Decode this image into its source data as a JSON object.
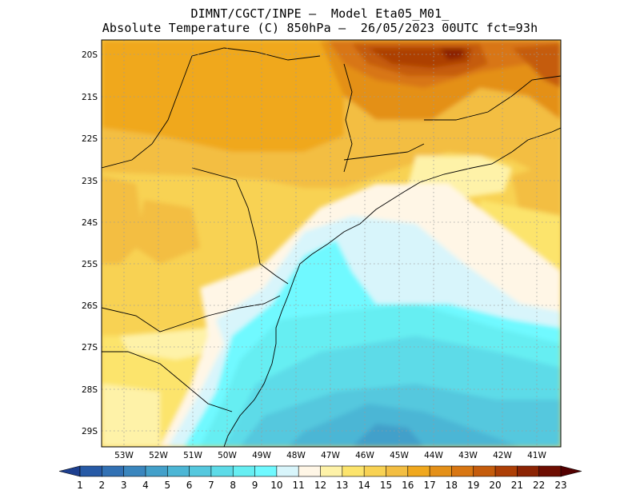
{
  "title": {
    "line1": "DIMNT/CGCT/INPE –  Model Eta05_M01_",
    "line2": "Absolute Temperature (C) 850hPa –  26/05/2023 00UTC fct=93h"
  },
  "axes": {
    "lat_labels": [
      "20S",
      "21S",
      "22S",
      "23S",
      "24S",
      "25S",
      "26S",
      "27S",
      "28S",
      "29S"
    ],
    "lon_labels": [
      "53W",
      "52W",
      "51W",
      "50W",
      "49W",
      "48W",
      "47W",
      "46W",
      "45W",
      "44W",
      "43W",
      "42W",
      "41W"
    ]
  },
  "colorbar": {
    "labels": [
      "1",
      "2",
      "3",
      "4",
      "5",
      "6",
      "7",
      "8",
      "9",
      "10",
      "11",
      "12",
      "13",
      "14",
      "15",
      "16",
      "17",
      "18",
      "19",
      "20",
      "21",
      "22",
      "23"
    ],
    "colors": [
      "#1d3f8f",
      "#275aa6",
      "#3271b4",
      "#3a86be",
      "#43a0ca",
      "#4cb6d5",
      "#55c8de",
      "#5ddbe8",
      "#66eef2",
      "#6ff9ff",
      "#d8f5fb",
      "#fff6e6",
      "#fef2a8",
      "#fce46c",
      "#f8d253",
      "#f3be42",
      "#f0a81e",
      "#e49018",
      "#d87612",
      "#c55c0c",
      "#ad3f06",
      "#8c2404",
      "#6e0d02",
      "#530000"
    ]
  }
}
